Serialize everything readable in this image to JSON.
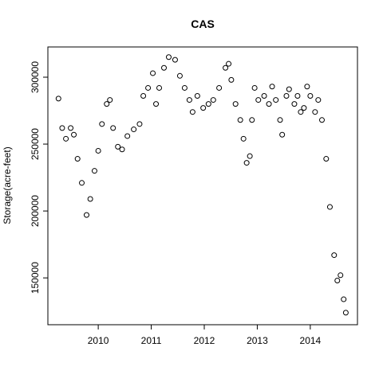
{
  "chart_data": {
    "type": "scatter",
    "title": "CAS",
    "ylabel": "Storage(acre-feet)",
    "color": "#000000",
    "x": [
      2009.25,
      2009.32,
      2009.39,
      2009.48,
      2009.54,
      2009.61,
      2009.69,
      2009.78,
      2009.85,
      2009.93,
      2010.0,
      2010.07,
      2010.16,
      2010.22,
      2010.28,
      2010.37,
      2010.45,
      2010.55,
      2010.67,
      2010.78,
      2010.85,
      2010.94,
      2011.03,
      2011.09,
      2011.15,
      2011.24,
      2011.33,
      2011.45,
      2011.54,
      2011.63,
      2011.72,
      2011.78,
      2011.87,
      2011.98,
      2012.08,
      2012.17,
      2012.28,
      2012.4,
      2012.46,
      2012.51,
      2012.59,
      2012.68,
      2012.74,
      2012.8,
      2012.86,
      2012.9,
      2012.95,
      2013.02,
      2013.13,
      2013.22,
      2013.28,
      2013.35,
      2013.43,
      2013.47,
      2013.55,
      2013.6,
      2013.7,
      2013.76,
      2013.82,
      2013.88,
      2013.94,
      2014.0,
      2014.09,
      2014.15,
      2014.22,
      2014.3,
      2014.37,
      2014.45,
      2014.51,
      2014.57,
      2014.63,
      2014.67
    ],
    "values": [
      284000,
      262000,
      254000,
      262000,
      257000,
      239000,
      221000,
      197000,
      209000,
      230000,
      245000,
      265000,
      280000,
      283000,
      262000,
      248000,
      246000,
      256000,
      261000,
      265000,
      286000,
      292000,
      303000,
      280000,
      292000,
      307000,
      315000,
      313000,
      301000,
      292000,
      283000,
      274000,
      286000,
      277000,
      280000,
      283000,
      292000,
      307000,
      310000,
      298000,
      280000,
      268000,
      254000,
      236000,
      241000,
      268000,
      292000,
      283000,
      286000,
      280000,
      293000,
      283000,
      268000,
      257000,
      286000,
      291000,
      280000,
      286000,
      274000,
      277000,
      293000,
      286000,
      274000,
      283000,
      268000,
      239000,
      203000,
      167000,
      148000,
      152000,
      134000,
      124000
    ],
    "xlim": [
      2009.05,
      2014.89
    ],
    "xticks": [
      2010,
      2011,
      2012,
      2013,
      2014
    ],
    "ylim": [
      115000,
      322600
    ],
    "yticks": [
      150000,
      200000,
      250000,
      300000
    ]
  }
}
